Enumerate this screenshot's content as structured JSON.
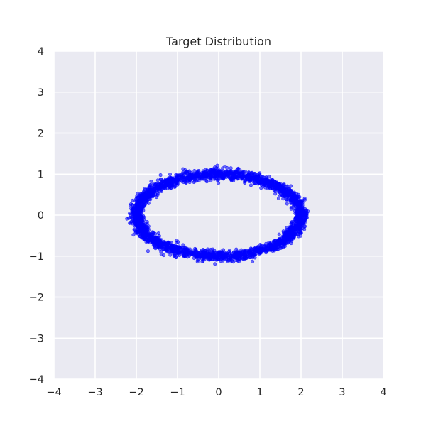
{
  "chart_data": {
    "type": "scatter",
    "title": "Target Distribution",
    "xlabel": "",
    "ylabel": "",
    "xlim": [
      -4,
      4
    ],
    "ylim": [
      -4,
      4
    ],
    "x_ticks": [
      -4,
      -3,
      -2,
      -1,
      0,
      1,
      2,
      3,
      4
    ],
    "y_ticks": [
      -4,
      -3,
      -2,
      -1,
      0,
      1,
      2,
      3,
      4
    ],
    "x_tick_labels": [
      "−4",
      "−3",
      "−2",
      "−1",
      "0",
      "1",
      "2",
      "3",
      "4"
    ],
    "y_tick_labels": [
      "−4",
      "−3",
      "−2",
      "−1",
      "0",
      "1",
      "2",
      "3",
      "4"
    ],
    "grid": true,
    "background_color": "#eaeaf2",
    "point_color": "#0000ff",
    "series": [
      {
        "shape": "ellipse-ring",
        "center": [
          0,
          0
        ],
        "semi_axis_x": 2.0,
        "semi_axis_y": 1.0,
        "point_count": 3000
      }
    ]
  }
}
